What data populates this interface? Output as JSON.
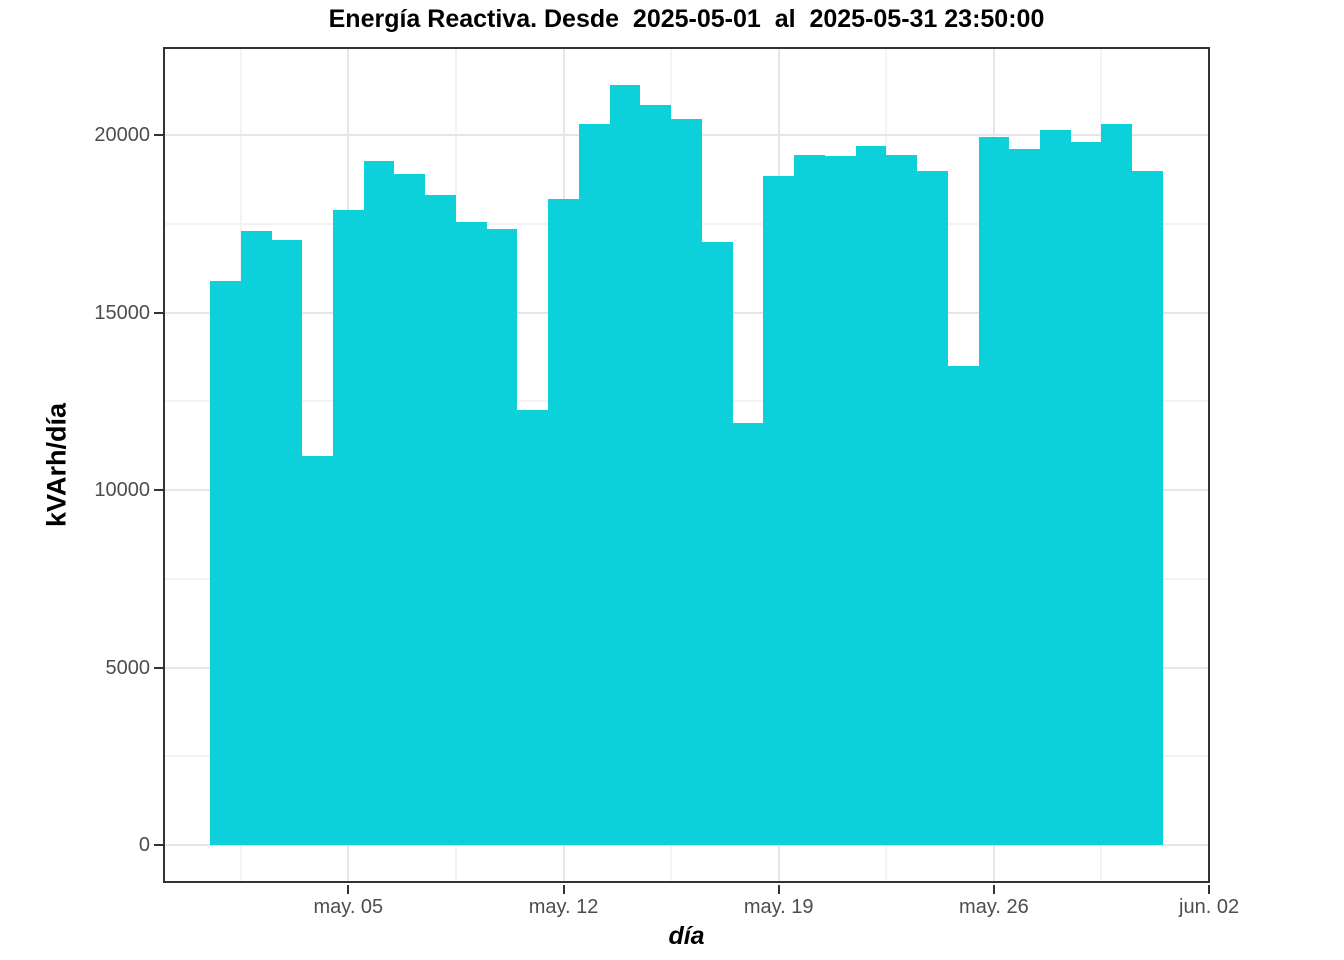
{
  "chart_data": {
    "type": "bar",
    "title": "Energía Reactiva. Desde  2025-05-01  al  2025-05-31 23:50:00",
    "xlabel": "día",
    "ylabel": "kVArh/día",
    "legend": "none",
    "grid": true,
    "categories": [
      "2025-05-01",
      "2025-05-02",
      "2025-05-03",
      "2025-05-04",
      "2025-05-05",
      "2025-05-06",
      "2025-05-07",
      "2025-05-08",
      "2025-05-09",
      "2025-05-10",
      "2025-05-11",
      "2025-05-12",
      "2025-05-13",
      "2025-05-14",
      "2025-05-15",
      "2025-05-16",
      "2025-05-17",
      "2025-05-18",
      "2025-05-19",
      "2025-05-20",
      "2025-05-21",
      "2025-05-22",
      "2025-05-23",
      "2025-05-24",
      "2025-05-25",
      "2025-05-26",
      "2025-05-27",
      "2025-05-28",
      "2025-05-29",
      "2025-05-30",
      "2025-05-31"
    ],
    "values": [
      15900,
      17300,
      17050,
      10950,
      17900,
      19280,
      18900,
      18300,
      17550,
      17350,
      12250,
      18200,
      20300,
      21400,
      20850,
      20450,
      17000,
      11880,
      18850,
      19440,
      19420,
      19680,
      19450,
      19000,
      13500,
      19950,
      19600,
      20150,
      19800,
      20300,
      19000
    ],
    "bar_days": [
      1,
      2,
      3,
      4,
      5,
      6,
      7,
      8,
      9,
      10,
      11,
      12,
      13,
      14,
      15,
      16,
      17,
      18,
      19,
      20,
      21,
      22,
      23,
      24,
      25,
      26,
      27,
      28,
      29,
      30,
      31
    ],
    "x_ticks": [
      {
        "label": "may. 05",
        "day": 5
      },
      {
        "label": "may. 12",
        "day": 12
      },
      {
        "label": "may. 19",
        "day": 19
      },
      {
        "label": "may. 26",
        "day": 26
      },
      {
        "label": "jun. 02",
        "day": 33
      }
    ],
    "x_minor_days": [
      1.5,
      8.5,
      15.5,
      22.5,
      29.5
    ],
    "y_ticks": [
      {
        "label": "0",
        "value": 0
      },
      {
        "label": "5000",
        "value": 5000
      },
      {
        "label": "10000",
        "value": 10000
      },
      {
        "label": "15000",
        "value": 15000
      },
      {
        "label": "20000",
        "value": 20000
      }
    ],
    "y_minor": [
      2500,
      7500,
      12500,
      17500
    ],
    "ylim": [
      0,
      21400
    ],
    "ylim_display": [
      -1070,
      22480
    ],
    "xlim_display": [
      -1.03,
      33.03
    ],
    "colors": {
      "bar": "#0dd1da",
      "tick_label": "#4d4d4d",
      "axis_title": "#000000",
      "panel_border": "#333333",
      "grid_major": "#e6e6e6",
      "grid_minor": "#f3f3f3",
      "background": "#ffffff"
    }
  }
}
